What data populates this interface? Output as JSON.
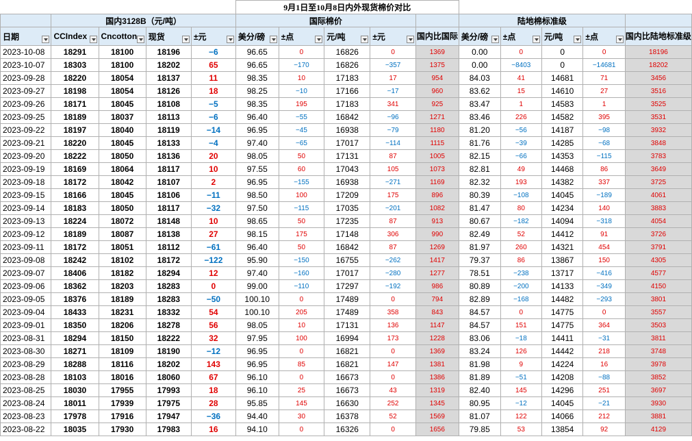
{
  "title": "9月1日至10月8日内外现货棉价对比",
  "groups": {
    "domestic": "国内3128B（元/吨）",
    "international": "国际棉价",
    "landed": "陆地棉标准级"
  },
  "headers": [
    "日期",
    "CCIndex",
    "Cncotton",
    "现货",
    "±元",
    "美分/磅",
    "±点",
    "元/吨",
    "±元",
    "国内比国际",
    "美分/磅",
    "±点",
    "元/吨",
    "±点",
    "国内比陆地标准级"
  ],
  "colors": {
    "header_bg": "#ddebf7",
    "gray_col": "#d9d9d9",
    "positive": "#e00000",
    "negative": "#0070c0"
  },
  "rows": [
    [
      "2023-10-08",
      "18291",
      "18100",
      "18196",
      "−6",
      "96.65",
      "0",
      "16826",
      "0",
      "1369",
      "0.00",
      "0",
      "0",
      "0",
      "18196"
    ],
    [
      "2023-10-07",
      "18303",
      "18100",
      "18202",
      "65",
      "96.65",
      "−170",
      "16826",
      "−357",
      "1375",
      "0.00",
      "−8403",
      "0",
      "−14681",
      "18202"
    ],
    [
      "2023-09-28",
      "18220",
      "18054",
      "18137",
      "11",
      "98.35",
      "10",
      "17183",
      "17",
      "954",
      "84.03",
      "41",
      "14681",
      "71",
      "3456"
    ],
    [
      "2023-09-27",
      "18198",
      "18054",
      "18126",
      "18",
      "98.25",
      "−10",
      "17166",
      "−17",
      "960",
      "83.62",
      "15",
      "14610",
      "27",
      "3516"
    ],
    [
      "2023-09-26",
      "18171",
      "18045",
      "18108",
      "−5",
      "98.35",
      "195",
      "17183",
      "341",
      "925",
      "83.47",
      "1",
      "14583",
      "1",
      "3525"
    ],
    [
      "2023-09-25",
      "18189",
      "18037",
      "18113",
      "−6",
      "96.40",
      "−55",
      "16842",
      "−96",
      "1271",
      "83.46",
      "226",
      "14582",
      "395",
      "3531"
    ],
    [
      "2023-09-22",
      "18197",
      "18040",
      "18119",
      "−14",
      "96.95",
      "−45",
      "16938",
      "−79",
      "1180",
      "81.20",
      "−56",
      "14187",
      "−98",
      "3932"
    ],
    [
      "2023-09-21",
      "18220",
      "18045",
      "18133",
      "−4",
      "97.40",
      "−65",
      "17017",
      "−114",
      "1115",
      "81.76",
      "−39",
      "14285",
      "−68",
      "3848"
    ],
    [
      "2023-09-20",
      "18222",
      "18050",
      "18136",
      "20",
      "98.05",
      "50",
      "17131",
      "87",
      "1005",
      "82.15",
      "−66",
      "14353",
      "−115",
      "3783"
    ],
    [
      "2023-09-19",
      "18169",
      "18064",
      "18117",
      "10",
      "97.55",
      "60",
      "17043",
      "105",
      "1073",
      "82.81",
      "49",
      "14468",
      "86",
      "3649"
    ],
    [
      "2023-09-18",
      "18172",
      "18042",
      "18107",
      "2",
      "96.95",
      "−155",
      "16938",
      "−271",
      "1169",
      "82.32",
      "193",
      "14382",
      "337",
      "3725"
    ],
    [
      "2023-09-15",
      "18166",
      "18045",
      "18106",
      "−11",
      "98.50",
      "100",
      "17209",
      "175",
      "896",
      "80.39",
      "−108",
      "14045",
      "−189",
      "4061"
    ],
    [
      "2023-09-14",
      "18183",
      "18050",
      "18117",
      "−32",
      "97.50",
      "−115",
      "17035",
      "−201",
      "1082",
      "81.47",
      "80",
      "14234",
      "140",
      "3883"
    ],
    [
      "2023-09-13",
      "18224",
      "18072",
      "18148",
      "10",
      "98.65",
      "50",
      "17235",
      "87",
      "913",
      "80.67",
      "−182",
      "14094",
      "−318",
      "4054"
    ],
    [
      "2023-09-12",
      "18189",
      "18087",
      "18138",
      "27",
      "98.15",
      "175",
      "17148",
      "306",
      "990",
      "82.49",
      "52",
      "14412",
      "91",
      "3726"
    ],
    [
      "2023-09-11",
      "18172",
      "18051",
      "18112",
      "−61",
      "96.40",
      "50",
      "16842",
      "87",
      "1269",
      "81.97",
      "260",
      "14321",
      "454",
      "3791"
    ],
    [
      "2023-09-08",
      "18242",
      "18102",
      "18172",
      "−122",
      "95.90",
      "−150",
      "16755",
      "−262",
      "1417",
      "79.37",
      "86",
      "13867",
      "150",
      "4305"
    ],
    [
      "2023-09-07",
      "18406",
      "18182",
      "18294",
      "12",
      "97.40",
      "−160",
      "17017",
      "−280",
      "1277",
      "78.51",
      "−238",
      "13717",
      "−416",
      "4577"
    ],
    [
      "2023-09-06",
      "18362",
      "18203",
      "18283",
      "0",
      "99.00",
      "−110",
      "17297",
      "−192",
      "986",
      "80.89",
      "−200",
      "14133",
      "−349",
      "4150"
    ],
    [
      "2023-09-05",
      "18376",
      "18189",
      "18283",
      "−50",
      "100.10",
      "0",
      "17489",
      "0",
      "794",
      "82.89",
      "−168",
      "14482",
      "−293",
      "3801"
    ],
    [
      "2023-09-04",
      "18433",
      "18231",
      "18332",
      "54",
      "100.10",
      "205",
      "17489",
      "358",
      "843",
      "84.57",
      "0",
      "14775",
      "0",
      "3557"
    ],
    [
      "2023-09-01",
      "18350",
      "18206",
      "18278",
      "56",
      "98.05",
      "10",
      "17131",
      "136",
      "1147",
      "84.57",
      "151",
      "14775",
      "364",
      "3503"
    ],
    [
      "2023-08-31",
      "18294",
      "18150",
      "18222",
      "32",
      "97.95",
      "100",
      "16994",
      "173",
      "1228",
      "83.06",
      "−18",
      "14411",
      "−31",
      "3811"
    ],
    [
      "2023-08-30",
      "18271",
      "18109",
      "18190",
      "−12",
      "96.95",
      "0",
      "16821",
      "0",
      "1369",
      "83.24",
      "126",
      "14442",
      "218",
      "3748"
    ],
    [
      "2023-08-29",
      "18288",
      "18116",
      "18202",
      "143",
      "96.95",
      "85",
      "16821",
      "147",
      "1381",
      "81.98",
      "9",
      "14224",
      "16",
      "3978"
    ],
    [
      "2023-08-28",
      "18103",
      "18016",
      "18060",
      "67",
      "96.10",
      "0",
      "16673",
      "0",
      "1386",
      "81.89",
      "−51",
      "14208",
      "−88",
      "3852"
    ],
    [
      "2023-08-25",
      "18030",
      "17955",
      "17993",
      "18",
      "96.10",
      "25",
      "16673",
      "43",
      "1319",
      "82.40",
      "145",
      "14296",
      "251",
      "3697"
    ],
    [
      "2023-08-24",
      "18011",
      "17939",
      "17975",
      "28",
      "95.85",
      "145",
      "16630",
      "252",
      "1345",
      "80.95",
      "−12",
      "14045",
      "−21",
      "3930"
    ],
    [
      "2023-08-23",
      "17978",
      "17916",
      "17947",
      "−36",
      "94.40",
      "30",
      "16378",
      "52",
      "1569",
      "81.07",
      "122",
      "14066",
      "212",
      "3881"
    ],
    [
      "2023-08-22",
      "18035",
      "17930",
      "17983",
      "16",
      "94.10",
      "0",
      "16326",
      "0",
      "1656",
      "79.85",
      "53",
      "13854",
      "92",
      "4129"
    ]
  ]
}
